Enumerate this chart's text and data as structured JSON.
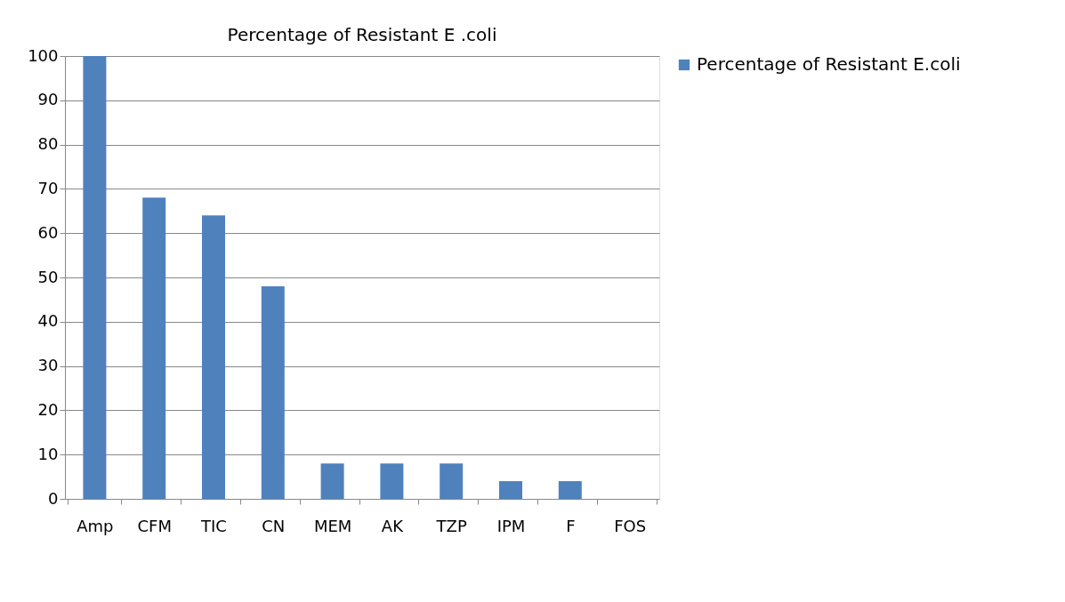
{
  "chart_data": {
    "type": "bar",
    "title": "Percentage of Resistant E .coli",
    "categories": [
      "Amp",
      "CFM",
      "TIC",
      "CN",
      "MEM",
      "AK",
      "TZP",
      "IPM",
      "F",
      "FOS"
    ],
    "series": [
      {
        "name": "Percentage of Resistant E.coli",
        "color": "#4f81bd",
        "values": [
          100,
          68,
          64,
          48,
          8,
          8,
          8,
          4,
          4,
          0
        ]
      }
    ],
    "ylim": [
      0,
      100
    ],
    "yticks": [
      0,
      10,
      20,
      30,
      40,
      50,
      60,
      70,
      80,
      90,
      100
    ],
    "grid": "y",
    "legend": "right"
  }
}
